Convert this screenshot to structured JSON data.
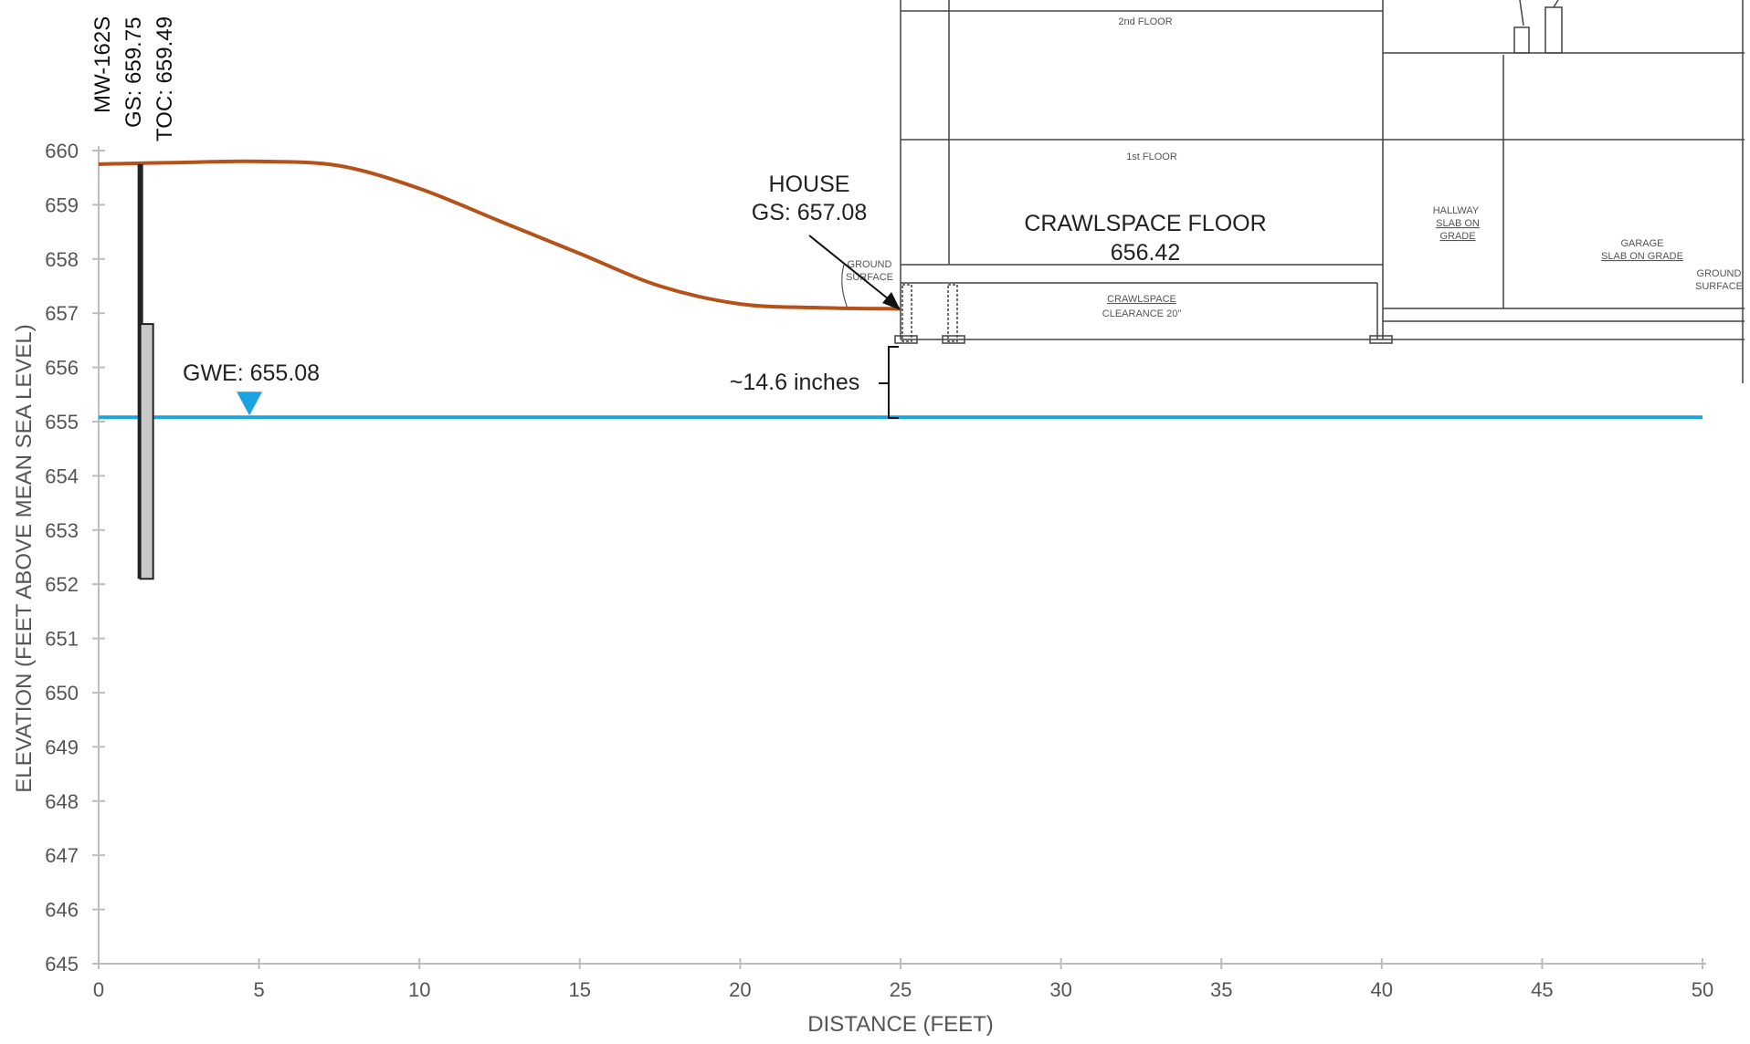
{
  "well": {
    "name": "MW-162S",
    "gs_label": "GS: 659.75",
    "toc_label": "TOC: 659.49",
    "gs": 659.75,
    "x": 1.3,
    "screen_top": 656.8,
    "screen_bottom": 652.1
  },
  "gwe": {
    "label": "GWE: 655.08",
    "value": 655.08
  },
  "house": {
    "title": "HOUSE",
    "gs_label": "GS: 657.08",
    "gs": 657.08,
    "x": 25
  },
  "crawlspace": {
    "title": "CRAWLSPACE FLOOR",
    "value": "656.42",
    "clearance_label": "CRAWLSPACE",
    "clearance_value": "CLEARANCE 20\""
  },
  "floors": {
    "second": "2nd FLOOR",
    "first": "1st FLOOR"
  },
  "hallway": {
    "line1": "HALLWAY",
    "line2": "SLAB ON",
    "line3": "GRADE"
  },
  "garage": {
    "line1": "GARAGE",
    "line2": "SLAB ON GRADE"
  },
  "ground_surface": {
    "line1": "GROUND",
    "line2": "SURFACE"
  },
  "ground_surface_right": {
    "line1": "GROUND",
    "line2": "SURFACE"
  },
  "separation": {
    "label": "~14.6 inches"
  },
  "chart_data": {
    "type": "line",
    "xlabel": "DISTANCE  (FEET)",
    "ylabel": "ELEVATION  (FEET ABOVE MEAN SEA LEVEL)",
    "xlim": [
      0,
      50
    ],
    "ylim": [
      645,
      660
    ],
    "x_ticks": [
      "0",
      "5",
      "10",
      "15",
      "20",
      "25",
      "30",
      "35",
      "40",
      "45",
      "50"
    ],
    "y_ticks": [
      "660",
      "659",
      "658",
      "657",
      "656",
      "655",
      "654",
      "653",
      "652",
      "651",
      "650",
      "649",
      "648",
      "647",
      "646",
      "645"
    ],
    "series": [
      {
        "color": "#b5521a",
        "x": [
          0,
          2.5,
          5,
          7.5,
          10,
          12.5,
          15,
          17.5,
          20,
          22.5,
          25
        ],
        "y": [
          659.75,
          659.78,
          659.8,
          659.72,
          659.3,
          658.7,
          658.1,
          657.5,
          657.17,
          657.1,
          657.08
        ]
      },
      {
        "color": "#1aa3e0",
        "x": [
          0,
          50
        ],
        "y": [
          655.08,
          655.08
        ]
      }
    ]
  }
}
